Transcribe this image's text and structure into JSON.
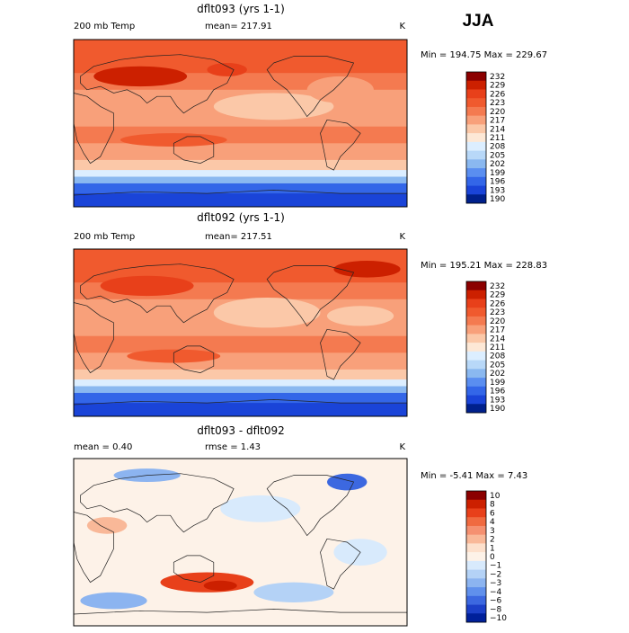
{
  "season": "JJA",
  "chart_data": [
    {
      "type": "heatmap",
      "title": "dflt093 (yrs 1-1)",
      "left_label": "200 mb Temp",
      "center_label": "mean= 217.91",
      "right_label": "K",
      "minmax_label": "Min = 194.75 Max = 229.67",
      "mean": 217.91,
      "min": 194.75,
      "max": 229.67,
      "colorbar_levels": [
        "232",
        "229",
        "226",
        "223",
        "220",
        "217",
        "214",
        "211",
        "208",
        "205",
        "202",
        "199",
        "196",
        "193",
        "190"
      ],
      "colors": [
        "#8b0000",
        "#cc2000",
        "#e8401a",
        "#f05a2e",
        "#f47a50",
        "#f8a07a",
        "#fbc8a8",
        "#fde8d6",
        "#dceeff",
        "#b8d8f8",
        "#8ab8f0",
        "#5a8ef0",
        "#3366e8",
        "#1a44d8",
        "#00208c"
      ]
    },
    {
      "type": "heatmap",
      "title": "dflt092 (yrs 1-1)",
      "left_label": "200 mb Temp",
      "center_label": "mean= 217.51",
      "right_label": "K",
      "minmax_label": "Min = 195.21 Max = 228.83",
      "mean": 217.51,
      "min": 195.21,
      "max": 228.83,
      "colorbar_levels": [
        "232",
        "229",
        "226",
        "223",
        "220",
        "217",
        "214",
        "211",
        "208",
        "205",
        "202",
        "199",
        "196",
        "193",
        "190"
      ],
      "colors": [
        "#8b0000",
        "#cc2000",
        "#e8401a",
        "#f05a2e",
        "#f47a50",
        "#f8a07a",
        "#fbc8a8",
        "#fde8d6",
        "#dceeff",
        "#b8d8f8",
        "#8ab8f0",
        "#5a8ef0",
        "#3366e8",
        "#1a44d8",
        "#00208c"
      ]
    },
    {
      "type": "heatmap",
      "title": "dflt093 - dflt092",
      "left_label": "mean =    0.40",
      "center_label": "rmse =    1.43",
      "right_label": "K",
      "minmax_label": "Min =  -5.41 Max =   7.43",
      "mean": 0.4,
      "rmse": 1.43,
      "min": -5.41,
      "max": 7.43,
      "colorbar_levels": [
        "10",
        "8",
        "6",
        "4",
        "3",
        "2",
        "1",
        "0",
        "−1",
        "−2",
        "−3",
        "−4",
        "−6",
        "−8",
        "−10"
      ],
      "colors": [
        "#8b0000",
        "#cc2000",
        "#e8401a",
        "#f06a40",
        "#f59070",
        "#f9b898",
        "#fde0cc",
        "#fdf2e8",
        "#d8eafc",
        "#b4d2f6",
        "#8cb4f0",
        "#6090ec",
        "#3c68e0",
        "#1c40c8",
        "#00209a"
      ]
    }
  ]
}
